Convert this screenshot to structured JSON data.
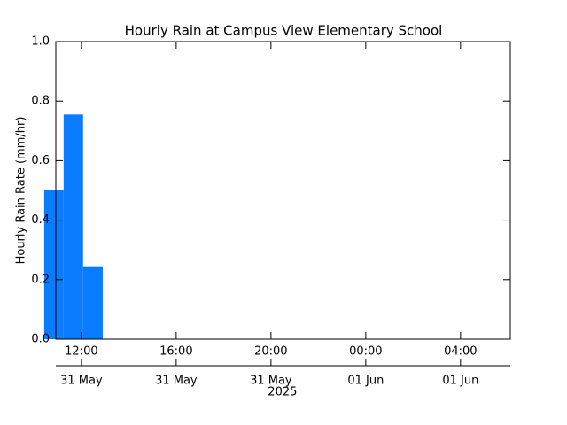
{
  "chart_data": {
    "type": "histogram",
    "title": "Hourly Rain at Campus View Elementary School",
    "y_label": "Hourly Rain Rate (mm/hr)",
    "bins": [
      10.43,
      11.25,
      12.07,
      12.9
    ],
    "values": [
      0.5,
      0.755,
      0.245
    ],
    "color": "#0a7cff",
    "xlim": [
      10.92,
      30.1
    ],
    "ylim": [
      0,
      1
    ],
    "yticks": [
      {
        "value": 0,
        "label": "0.0"
      },
      0.2,
      0.4,
      0.6,
      0.8,
      {
        "value": 1,
        "label": "1.0"
      }
    ],
    "xticks": [
      {
        "value": 12,
        "label": "12:00"
      },
      {
        "value": 16,
        "label": "16:00"
      },
      {
        "value": 20,
        "label": "20:00"
      },
      {
        "value": 24,
        "label": "00:00"
      },
      {
        "value": 28,
        "label": "04:00"
      }
    ],
    "date_ticks": [
      {
        "value": 12,
        "label": "31 May"
      },
      {
        "value": 16,
        "label": "31 May"
      },
      {
        "value": 20,
        "label": "31 May"
      },
      {
        "value": 24,
        "label": "01 Jun"
      },
      {
        "value": 28,
        "label": "01 Jun"
      }
    ],
    "year_label": "2025"
  }
}
